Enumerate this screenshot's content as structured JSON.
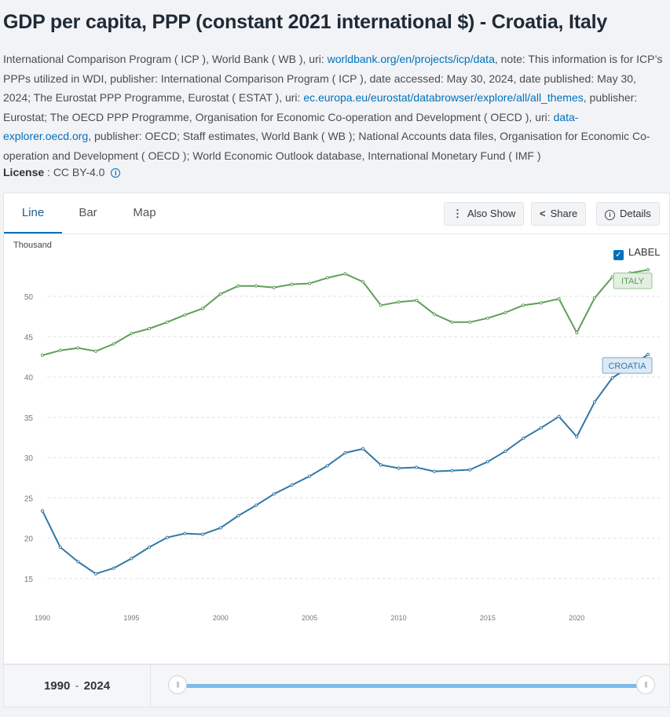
{
  "title": "GDP per capita, PPP (constant 2021 international $) - Croatia, Italy",
  "source": {
    "p1": "International Comparison Program ( ICP ), World Bank ( WB ), uri: ",
    "link1": "worldbank.org/en/projects/icp/data",
    "p2": ", note: This information is for ICP’s PPPs utilized in WDI, publisher: International Comparison Program ( ICP ), date accessed: May 30, 2024, date published: May 30, 2024; The Eurostat PPP Programme, Eurostat ( ESTAT ), uri: ",
    "link2": "ec.europa.eu/eurostat/databrowser/explore/all/all_themes",
    "p3": ", publisher: Eurostat; The OECD PPP Programme, Organisation for Economic Co-operation and Development ( OECD ), uri: ",
    "link3": "data-explorer.oecd.org",
    "p4": ", publisher: OECD; Staff estimates, World Bank ( WB ); National Accounts data files, Organisation for Economic Co-operation and Development ( OECD ); World Economic Outlook database, International Monetary Fund ( IMF )"
  },
  "license": {
    "label": "License",
    "sep": " : ",
    "value": "CC BY-4.0",
    "icon": "info-icon"
  },
  "tabs": [
    "Line",
    "Bar",
    "Map"
  ],
  "toolbar": {
    "also_show": "Also Show",
    "share": "Share",
    "details": "Details"
  },
  "label_toggle": "LABEL",
  "range": {
    "start": "1990",
    "sep": "-",
    "end": "2024"
  },
  "colors": {
    "italy": "#5e9e5a",
    "croatia": "#3278a6",
    "accent": "#0071bc"
  },
  "chart_data": {
    "type": "line",
    "ylabel": "Thousand",
    "ylim": [
      12,
      56
    ],
    "xlim": [
      1990,
      2024
    ],
    "yticks": [
      15,
      20,
      25,
      30,
      35,
      40,
      45,
      50
    ],
    "xticks": [
      1990,
      1995,
      2000,
      2005,
      2010,
      2015,
      2020
    ],
    "grid": true,
    "x": [
      1990,
      1991,
      1992,
      1993,
      1994,
      1995,
      1996,
      1997,
      1998,
      1999,
      2000,
      2001,
      2002,
      2003,
      2004,
      2005,
      2006,
      2007,
      2008,
      2009,
      2010,
      2011,
      2012,
      2013,
      2014,
      2015,
      2016,
      2017,
      2018,
      2019,
      2020,
      2021,
      2022,
      2023,
      2024
    ],
    "series": [
      {
        "name": "ITALY",
        "color": "#5e9e5a",
        "values": [
          42.7,
          43.3,
          43.6,
          43.2,
          44.1,
          45.4,
          46.0,
          46.8,
          47.7,
          48.5,
          50.3,
          51.3,
          51.3,
          51.1,
          51.5,
          51.6,
          52.3,
          52.8,
          51.8,
          48.9,
          49.3,
          49.5,
          47.8,
          46.8,
          46.8,
          47.3,
          48.0,
          48.9,
          49.2,
          49.7,
          45.5,
          49.8,
          52.4,
          52.9,
          53.3
        ]
      },
      {
        "name": "CROATIA",
        "color": "#3278a6",
        "values": [
          23.4,
          18.9,
          17.1,
          15.6,
          16.3,
          17.5,
          18.9,
          20.1,
          20.6,
          20.5,
          21.3,
          22.8,
          24.1,
          25.5,
          26.6,
          27.7,
          29.0,
          30.6,
          31.1,
          29.1,
          28.7,
          28.8,
          28.3,
          28.4,
          28.5,
          29.5,
          30.8,
          32.4,
          33.7,
          35.1,
          32.6,
          36.9,
          39.9,
          41.3,
          42.8
        ]
      }
    ]
  }
}
